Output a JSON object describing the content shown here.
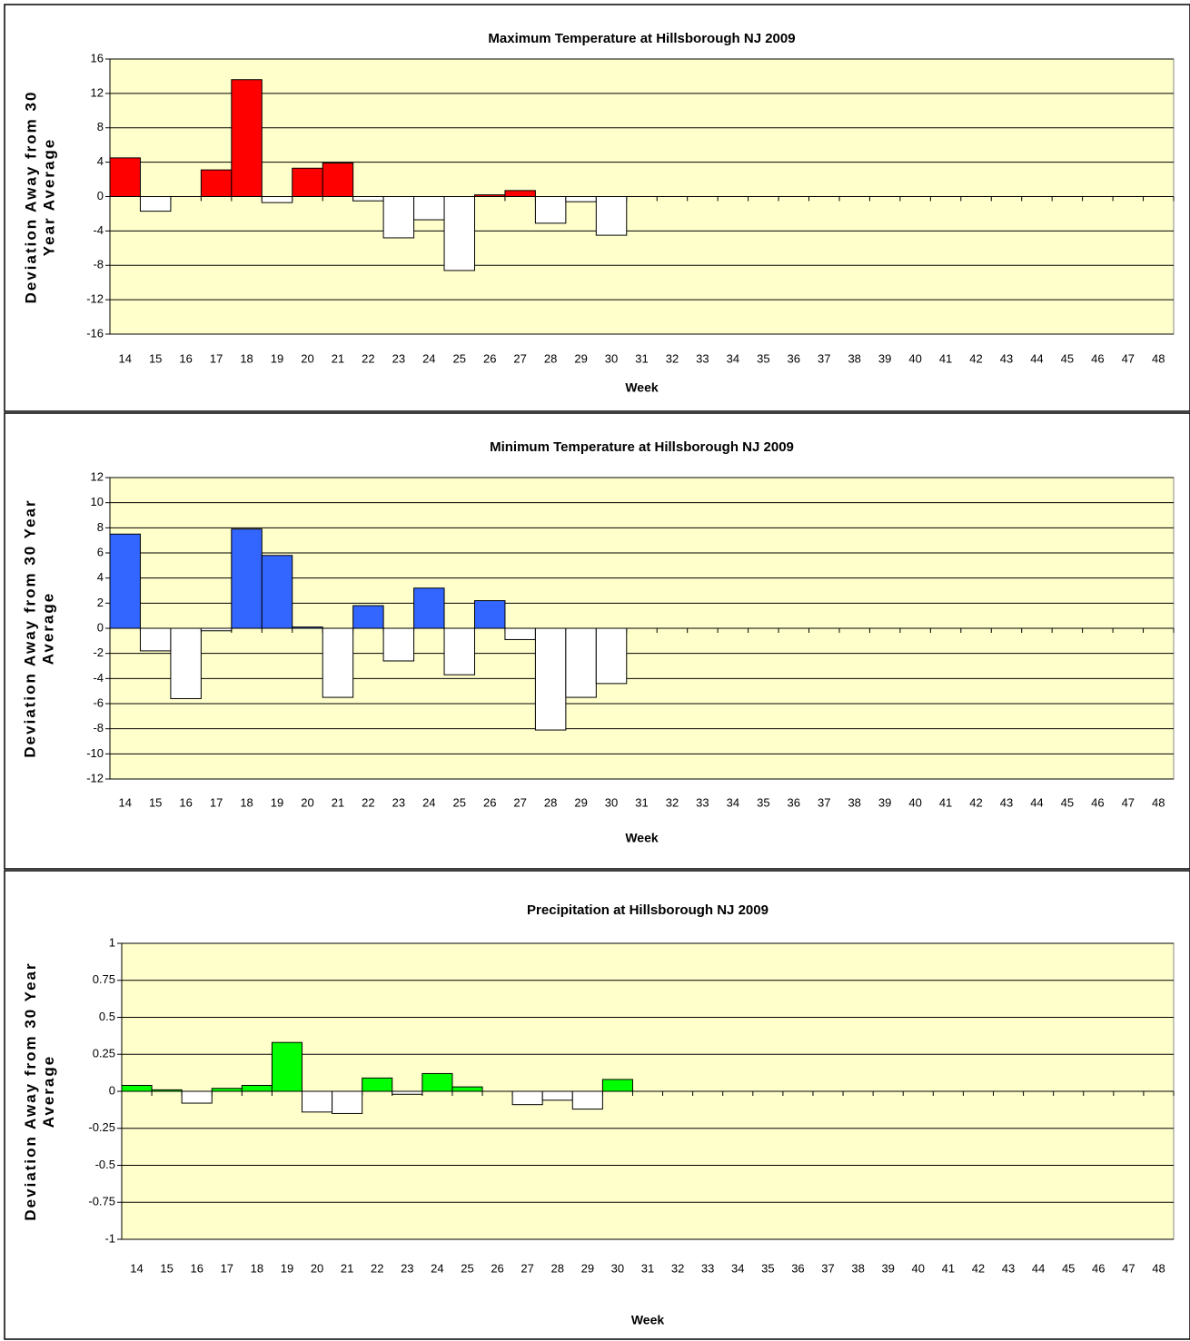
{
  "chart_data": [
    {
      "type": "bar",
      "title": "Maximum Temperature at Hillsborough NJ 2009",
      "xlabel": "Week",
      "ylabel": "Deviation Away from 30 Year Average",
      "categories": [
        "14",
        "15",
        "16",
        "17",
        "18",
        "19",
        "20",
        "21",
        "22",
        "23",
        "24",
        "25",
        "26",
        "27",
        "28",
        "29",
        "30",
        "31",
        "32",
        "33",
        "34",
        "35",
        "36",
        "37",
        "38",
        "39",
        "40",
        "41",
        "42",
        "43",
        "44",
        "45",
        "46",
        "47",
        "48"
      ],
      "values": [
        4.5,
        -1.7,
        null,
        3.1,
        13.6,
        -0.7,
        3.3,
        3.9,
        -0.5,
        -4.8,
        -2.7,
        -8.6,
        0.2,
        0.7,
        -3.1,
        -0.6,
        -4.5,
        null,
        null,
        null,
        null,
        null,
        null,
        null,
        null,
        null,
        null,
        null,
        null,
        null,
        null,
        null,
        null,
        null,
        null
      ],
      "color": "#ff0000",
      "negative_color": "#ffffff",
      "background": "#ffffcc",
      "grid": true,
      "ylim": [
        -16,
        16
      ],
      "yticks": [
        -16,
        -12,
        -8,
        -4,
        0,
        4,
        8,
        12,
        16
      ]
    },
    {
      "type": "bar",
      "title": "Minimum Temperature at Hillsborough NJ 2009",
      "xlabel": "Week",
      "ylabel": "Deviation Away from 30 Year Average",
      "categories": [
        "14",
        "15",
        "16",
        "17",
        "18",
        "19",
        "20",
        "21",
        "22",
        "23",
        "24",
        "25",
        "26",
        "27",
        "28",
        "29",
        "30",
        "31",
        "32",
        "33",
        "34",
        "35",
        "36",
        "37",
        "38",
        "39",
        "40",
        "41",
        "42",
        "43",
        "44",
        "45",
        "46",
        "47",
        "48"
      ],
      "values": [
        7.5,
        -1.8,
        -5.6,
        -0.2,
        7.9,
        5.8,
        0.1,
        -5.5,
        1.8,
        -2.6,
        3.2,
        -3.7,
        2.2,
        -0.9,
        -8.1,
        -5.5,
        -4.4,
        null,
        null,
        null,
        null,
        null,
        null,
        null,
        null,
        null,
        null,
        null,
        null,
        null,
        null,
        null,
        null,
        null,
        null
      ],
      "color": "#3366ff",
      "negative_color": "#ffffff",
      "background": "#ffffcc",
      "grid": true,
      "ylim": [
        -12,
        12
      ],
      "yticks": [
        -12,
        -10,
        -8,
        -6,
        -4,
        -2,
        0,
        2,
        4,
        6,
        8,
        10,
        12
      ]
    },
    {
      "type": "bar",
      "title": "Precipitation at Hillsborough NJ 2009",
      "xlabel": "Week",
      "ylabel": "Deviation Away from 30 Year Average",
      "categories": [
        "14",
        "15",
        "16",
        "17",
        "18",
        "19",
        "20",
        "21",
        "22",
        "23",
        "24",
        "25",
        "26",
        "27",
        "28",
        "29",
        "30",
        "31",
        "32",
        "33",
        "34",
        "35",
        "36",
        "37",
        "38",
        "39",
        "40",
        "41",
        "42",
        "43",
        "44",
        "45",
        "46",
        "47",
        "48"
      ],
      "values": [
        0.04,
        0.01,
        -0.08,
        0.02,
        0.04,
        0.33,
        -0.14,
        -0.15,
        0.09,
        -0.02,
        0.12,
        0.03,
        null,
        -0.09,
        -0.06,
        -0.12,
        0.08,
        null,
        null,
        null,
        null,
        null,
        null,
        null,
        null,
        null,
        null,
        null,
        null,
        null,
        null,
        null,
        null,
        null,
        null
      ],
      "color": "#00ff00",
      "negative_color": "#ffffff",
      "background": "#ffffcc",
      "grid": true,
      "ylim": [
        -1,
        1
      ],
      "yticks": [
        -1,
        -0.75,
        -0.5,
        -0.25,
        0,
        0.25,
        0.5,
        0.75,
        1
      ]
    }
  ]
}
